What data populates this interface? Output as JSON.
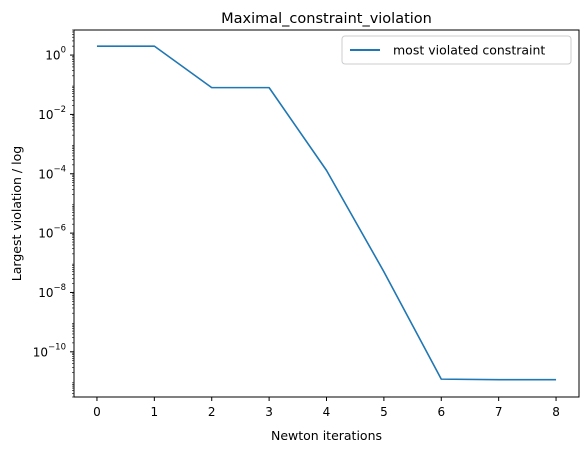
{
  "chart_data": {
    "type": "line",
    "title": "Maximal_constraint_violation",
    "xlabel": "Newton iterations",
    "ylabel": "Largest violation / log",
    "yscale": "log",
    "grid": false,
    "legend_position": "top-right",
    "xlim": [
      -0.4,
      8.4
    ],
    "ylim": [
      3e-12,
      7.0
    ],
    "x_ticks": [
      0,
      1,
      2,
      3,
      4,
      5,
      6,
      7,
      8
    ],
    "y_ticks": [
      {
        "value": 1.0,
        "base": "10",
        "exp": "0"
      },
      {
        "value": 0.01,
        "base": "10",
        "exp": "−2"
      },
      {
        "value": 0.0001,
        "base": "10",
        "exp": "−4"
      },
      {
        "value": 1e-06,
        "base": "10",
        "exp": "−6"
      },
      {
        "value": 1e-08,
        "base": "10",
        "exp": "−8"
      },
      {
        "value": 1e-10,
        "base": "10",
        "exp": "−10"
      }
    ],
    "series": [
      {
        "name": "most violated constraint",
        "color": "#1f77b4",
        "x": [
          0,
          1,
          2,
          3,
          4,
          5,
          6,
          7,
          8
        ],
        "y": [
          2.0,
          2.0,
          0.08,
          0.08,
          0.00013,
          5e-08,
          1.2e-11,
          1.15e-11,
          1.15e-11
        ]
      }
    ]
  }
}
